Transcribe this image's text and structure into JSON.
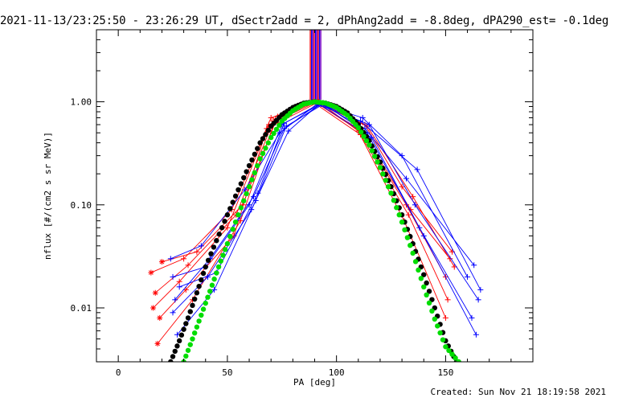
{
  "title": "2021-11-13/23:25:50 - 23:26:29 UT, dSectr2add = 2, dPhAng2add = -8.8deg, dPA290_est= -0.1deg",
  "footer": "Created: Sun Nov 21 18:19:58 2021",
  "chart_data": {
    "type": "scatter",
    "xlabel": "PA [deg]",
    "ylabel": "nflux [#/(cm2 s sr MeV)]",
    "xlim": [
      -10,
      190
    ],
    "ylim": [
      0.003,
      5.0
    ],
    "yscale": "log",
    "xticks": [
      0,
      50,
      100,
      150
    ],
    "xtick_labels": [
      "0",
      "50",
      "100",
      "150"
    ],
    "yticks": [
      0.01,
      0.1,
      1.0
    ],
    "ytick_labels": [
      "0.01",
      "0.10",
      "1.00"
    ],
    "colors": {
      "red": "#ff0000",
      "blue": "#0000ff",
      "green": "#00dd00",
      "black": "#000000",
      "purple": "#8000c0"
    },
    "vertical_lines_x": [
      88.0,
      88.6,
      89.2,
      89.8,
      90.4,
      91.0,
      91.6,
      92.2,
      92.8
    ],
    "series": [
      {
        "color": "red",
        "x": [
          15,
          30,
          52,
          70,
          90,
          110,
          132,
          150
        ],
        "y": [
          0.022,
          0.03,
          0.09,
          0.7,
          1.0,
          0.55,
          0.1,
          0.02
        ]
      },
      {
        "color": "red",
        "x": [
          17,
          32,
          54,
          71,
          90,
          112,
          134,
          152
        ],
        "y": [
          0.014,
          0.026,
          0.08,
          0.65,
          1.0,
          0.5,
          0.09,
          0.03
        ]
      },
      {
        "color": "red",
        "x": [
          16,
          28,
          50,
          69,
          91,
          113,
          130,
          153
        ],
        "y": [
          0.01,
          0.018,
          0.06,
          0.6,
          1.0,
          0.6,
          0.15,
          0.035
        ]
      },
      {
        "color": "red",
        "x": [
          18,
          34,
          56,
          72,
          89,
          111,
          133,
          151
        ],
        "y": [
          0.0045,
          0.012,
          0.07,
          0.68,
          1.0,
          0.48,
          0.08,
          0.012
        ]
      },
      {
        "color": "red",
        "x": [
          20,
          36,
          57,
          73,
          90,
          114,
          135,
          154
        ],
        "y": [
          0.028,
          0.035,
          0.1,
          0.72,
          1.0,
          0.58,
          0.12,
          0.025
        ]
      },
      {
        "color": "red",
        "x": [
          19,
          31,
          53,
          68,
          92,
          110,
          131,
          150
        ],
        "y": [
          0.008,
          0.015,
          0.05,
          0.55,
          1.0,
          0.52,
          0.07,
          0.008
        ]
      },
      {
        "color": "blue",
        "x": [
          25,
          40,
          60,
          75,
          92,
          112,
          130,
          160
        ],
        "y": [
          0.02,
          0.025,
          0.1,
          0.6,
          0.95,
          0.7,
          0.3,
          0.02
        ]
      },
      {
        "color": "blue",
        "x": [
          26,
          42,
          62,
          76,
          93,
          113,
          132,
          163
        ],
        "y": [
          0.012,
          0.03,
          0.12,
          0.55,
          0.95,
          0.55,
          0.18,
          0.026
        ]
      },
      {
        "color": "blue",
        "x": [
          24,
          38,
          58,
          74,
          91,
          115,
          136,
          165
        ],
        "y": [
          0.03,
          0.04,
          0.14,
          0.5,
          0.95,
          0.6,
          0.1,
          0.012
        ]
      },
      {
        "color": "blue",
        "x": [
          27,
          44,
          63,
          77,
          94,
          114,
          138,
          162
        ],
        "y": [
          0.0055,
          0.015,
          0.11,
          0.58,
          0.95,
          0.5,
          0.06,
          0.008
        ]
      },
      {
        "color": "blue",
        "x": [
          25,
          41,
          61,
          78,
          92,
          116,
          140,
          164
        ],
        "y": [
          0.009,
          0.02,
          0.09,
          0.52,
          0.95,
          0.45,
          0.05,
          0.0055
        ]
      },
      {
        "color": "blue",
        "x": [
          28,
          45,
          64,
          76,
          93,
          111,
          137,
          166
        ],
        "y": [
          0.016,
          0.022,
          0.13,
          0.62,
          0.95,
          0.65,
          0.22,
          0.015
        ]
      }
    ],
    "black_dots": {
      "x": [
        24,
        28,
        32,
        36,
        40,
        45,
        50,
        55,
        60,
        65,
        70,
        75,
        80,
        85,
        90,
        95,
        100,
        105,
        110,
        115,
        120,
        125,
        130,
        135,
        140,
        145,
        150,
        155
      ],
      "y": [
        0.003,
        0.0048,
        0.008,
        0.014,
        0.025,
        0.045,
        0.08,
        0.14,
        0.24,
        0.4,
        0.58,
        0.75,
        0.88,
        0.97,
        1.0,
        0.97,
        0.9,
        0.78,
        0.6,
        0.42,
        0.26,
        0.15,
        0.08,
        0.042,
        0.021,
        0.01,
        0.0048,
        0.003
      ]
    },
    "green_dots": {
      "x": [
        30,
        34,
        38,
        42,
        46,
        50,
        55,
        60,
        65,
        70,
        75,
        80,
        85,
        90,
        95,
        100,
        105,
        110,
        115,
        120,
        125,
        130,
        135,
        140,
        145,
        150,
        156
      ],
      "y": [
        0.003,
        0.005,
        0.0085,
        0.0145,
        0.025,
        0.042,
        0.08,
        0.15,
        0.28,
        0.45,
        0.65,
        0.82,
        0.95,
        1.0,
        0.97,
        0.88,
        0.74,
        0.56,
        0.38,
        0.23,
        0.13,
        0.068,
        0.034,
        0.016,
        0.0078,
        0.0042,
        0.003
      ]
    }
  }
}
